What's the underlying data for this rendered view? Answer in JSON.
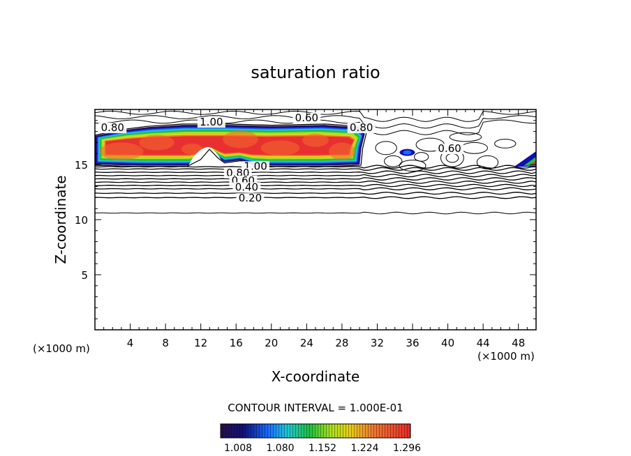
{
  "chart_data": {
    "type": "contour",
    "title": "saturation ratio",
    "xlabel": "X-coordinate",
    "ylabel": "Z-coordinate",
    "x_unit": "(×1000 m)",
    "z_unit": "(×1000 m)",
    "xlim": [
      0,
      50
    ],
    "ylim": [
      0,
      20
    ],
    "x_ticks": [
      4,
      8,
      12,
      16,
      20,
      24,
      28,
      32,
      36,
      40,
      44,
      48
    ],
    "y_ticks": [
      5,
      10,
      15
    ],
    "contour_interval_text": "CONTOUR INTERVAL = 1.000E-01",
    "contour_labels": [
      {
        "text": "0.80",
        "x": 2.0,
        "z": 18.1
      },
      {
        "text": "1.00",
        "x": 13.2,
        "z": 18.6
      },
      {
        "text": "0.60",
        "x": 24.0,
        "z": 19.0
      },
      {
        "text": "0.80",
        "x": 30.2,
        "z": 18.1
      },
      {
        "text": "0.60",
        "x": 40.2,
        "z": 16.2
      },
      {
        "text": "1.00",
        "x": 18.2,
        "z": 14.6
      },
      {
        "text": "0.80",
        "x": 16.2,
        "z": 14.0
      },
      {
        "text": "0.60",
        "x": 16.8,
        "z": 13.3
      },
      {
        "text": "0.40",
        "x": 17.2,
        "z": 12.7
      },
      {
        "text": "0.20",
        "x": 17.6,
        "z": 11.7
      }
    ],
    "colorbar": {
      "tick_labels": [
        "1.008",
        "1.080",
        "1.152",
        "1.224",
        "1.296"
      ],
      "range": [
        1.0,
        1.3
      ]
    },
    "supersaturated_regions": [
      {
        "x": [
          0,
          30.5
        ],
        "z": [
          14.8,
          18.6
        ]
      },
      {
        "x": [
          34.5,
          36.3
        ],
        "z": [
          15.8,
          16.5
        ]
      },
      {
        "x": [
          48,
          50
        ],
        "z": [
          14.8,
          16.0
        ]
      }
    ],
    "layers": {
      "dense_stable_levels_z": [
        12.0,
        13.3,
        14.7
      ],
      "sparse_level_z": 10.6,
      "cloud_top_z": 19.7
    }
  }
}
